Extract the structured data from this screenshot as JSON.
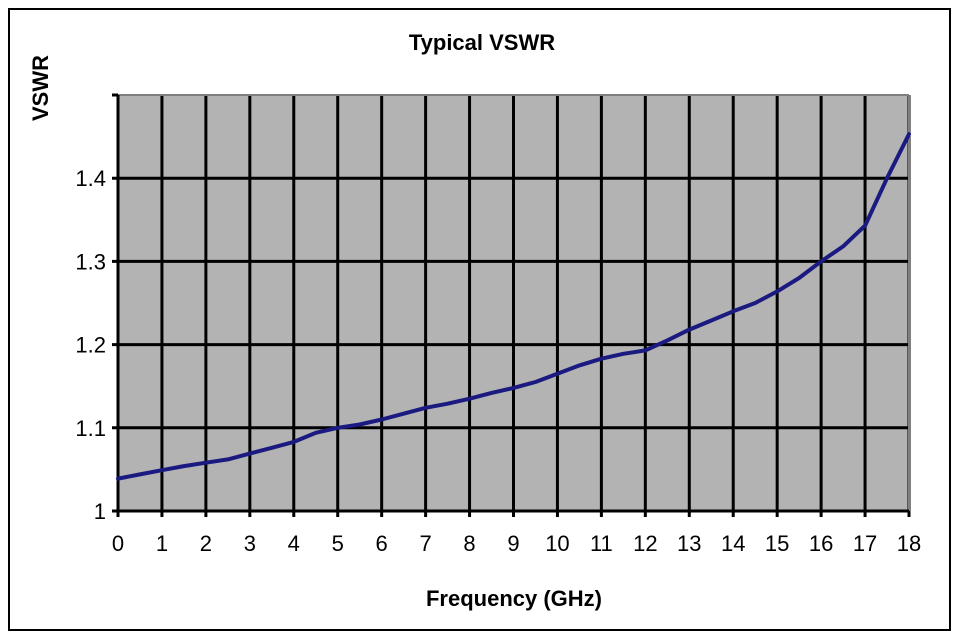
{
  "chart_data": {
    "type": "line",
    "title": "Typical VSWR",
    "xlabel": "Frequency (GHz)",
    "ylabel": "VSWR",
    "xlim": [
      0,
      18
    ],
    "ylim": [
      1,
      1.5
    ],
    "x_ticks": [
      "0",
      "1",
      "2",
      "3",
      "4",
      "5",
      "6",
      "7",
      "8",
      "9",
      "10",
      "11",
      "12",
      "13",
      "14",
      "15",
      "16",
      "17",
      "18"
    ],
    "y_ticks": [
      {
        "value": 1,
        "label": "1"
      },
      {
        "value": 1.1,
        "label": "1.1"
      },
      {
        "value": 1.2,
        "label": "1.2"
      },
      {
        "value": 1.3,
        "label": "1.3"
      },
      {
        "value": 1.4,
        "label": "1.4"
      }
    ],
    "grid": true,
    "colors": {
      "plot_bg": "#b3b3b3",
      "grid": "#000000",
      "line": "#1a1a80"
    },
    "series": [
      {
        "x": [
          0,
          0.5,
          1,
          1.5,
          2,
          2.5,
          3,
          3.5,
          4,
          4.5,
          5,
          5.5,
          6,
          6.5,
          7,
          7.5,
          8,
          8.5,
          9,
          9.5,
          10,
          10.5,
          11,
          11.5,
          12,
          12.5,
          13,
          13.5,
          14,
          14.5,
          15,
          15.5,
          16,
          16.5,
          17,
          17.5,
          18
        ],
        "values": [
          1.039,
          1.044,
          1.049,
          1.054,
          1.058,
          1.062,
          1.069,
          1.076,
          1.083,
          1.094,
          1.1,
          1.104,
          1.11,
          1.117,
          1.124,
          1.129,
          1.135,
          1.142,
          1.148,
          1.155,
          1.165,
          1.175,
          1.183,
          1.189,
          1.193,
          1.205,
          1.218,
          1.229,
          1.24,
          1.25,
          1.264,
          1.28,
          1.3,
          1.318,
          1.343,
          1.4,
          1.453
        ]
      }
    ]
  }
}
